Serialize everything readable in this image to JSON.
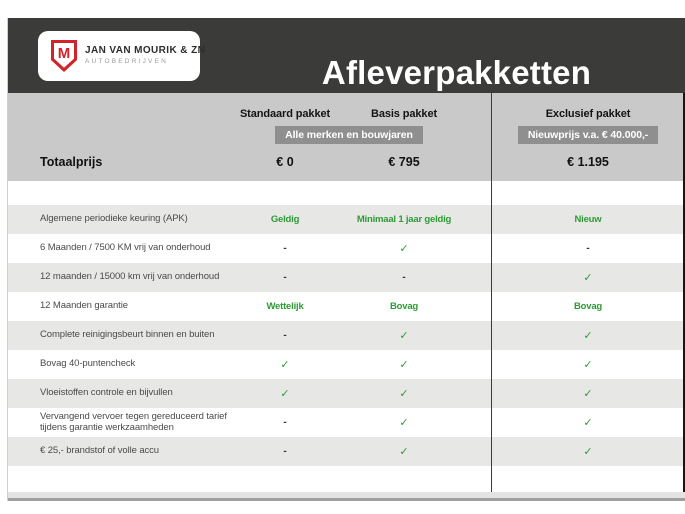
{
  "colors": {
    "header_bg": "#3b3b39",
    "head_block_bg": "#c9c9c9",
    "badge_bg": "#8f8f8f",
    "row_alt_bg": "#e7e7e6",
    "accent_green": "#2e9b35",
    "brand_red": "#d2232a"
  },
  "brand": {
    "monogram": "M",
    "name": "JAN VAN MOURIK & ZN",
    "tagline": "AUTOBEDRIJVEN"
  },
  "title": "Afleverpakketten",
  "packages": {
    "columns": [
      "Standaard pakket",
      "Basis pakket",
      "Exclusief pakket"
    ],
    "badge_all_makes": "Alle merken en bouwjaren",
    "badge_new_price": "Nieuwprijs v.a. € 40.000,-",
    "totals": {
      "label": "Totaalprijs",
      "values": [
        "€ 0",
        "€ 795",
        "€ 1.195"
      ]
    },
    "rows": [
      {
        "label": "Algemene periodieke keuring (APK)",
        "values": [
          "Geldig",
          "Minimaal 1 jaar geldig",
          "Nieuw"
        ]
      },
      {
        "label": "6 Maanden / 7500 KM vrij van onderhoud",
        "values": [
          "-",
          "✓",
          "-"
        ]
      },
      {
        "label": "12 maanden / 15000 km vrij van onderhoud",
        "values": [
          "-",
          "-",
          "✓"
        ]
      },
      {
        "label": "12 Maanden garantie",
        "values": [
          "Wettelijk",
          "Bovag",
          "Bovag"
        ]
      },
      {
        "label": "Complete reinigingsbeurt binnen en buiten",
        "values": [
          "-",
          "✓",
          "✓"
        ]
      },
      {
        "label": "Bovag 40-puntencheck",
        "values": [
          "✓",
          "✓",
          "✓"
        ]
      },
      {
        "label": "Vloeistoffen controle en bijvullen",
        "values": [
          "✓",
          "✓",
          "✓"
        ]
      },
      {
        "label": "Vervangend vervoer tegen gereduceerd tarief tijdens garantie werkzaamheden",
        "values": [
          "-",
          "✓",
          "✓"
        ]
      },
      {
        "label": "€ 25,- brandstof of volle accu",
        "values": [
          "-",
          "✓",
          "✓"
        ]
      }
    ]
  }
}
